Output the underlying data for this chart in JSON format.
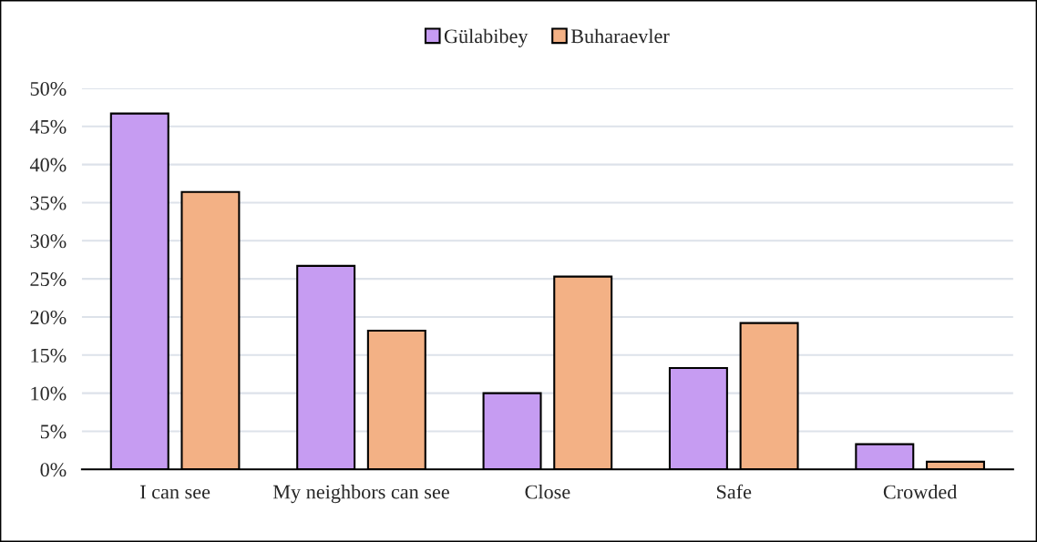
{
  "chart_data": {
    "type": "bar",
    "categories": [
      "I can see",
      "My neighbors can see",
      "Close",
      "Safe",
      "Crowded"
    ],
    "series": [
      {
        "name": "Gülabibey",
        "color": "#c69cf2",
        "values": [
          46.7,
          26.7,
          10.0,
          13.3,
          3.3
        ]
      },
      {
        "name": "Buharaevler",
        "color": "#f3b185",
        "values": [
          36.4,
          18.2,
          25.3,
          19.2,
          1.0
        ]
      }
    ],
    "ylim": [
      0,
      50
    ],
    "yticks": [
      {
        "value": 0,
        "label": "0%"
      },
      {
        "value": 5,
        "label": "5%"
      },
      {
        "value": 10,
        "label": "10%"
      },
      {
        "value": 15,
        "label": "15%"
      },
      {
        "value": 20,
        "label": "20%"
      },
      {
        "value": 25,
        "label": "25%"
      },
      {
        "value": 30,
        "label": "30%"
      },
      {
        "value": 35,
        "label": "35%"
      },
      {
        "value": 40,
        "label": "40%"
      },
      {
        "value": 45,
        "label": "45%"
      },
      {
        "value": 50,
        "label": "50%"
      }
    ],
    "grid": "y",
    "legend": "top"
  }
}
